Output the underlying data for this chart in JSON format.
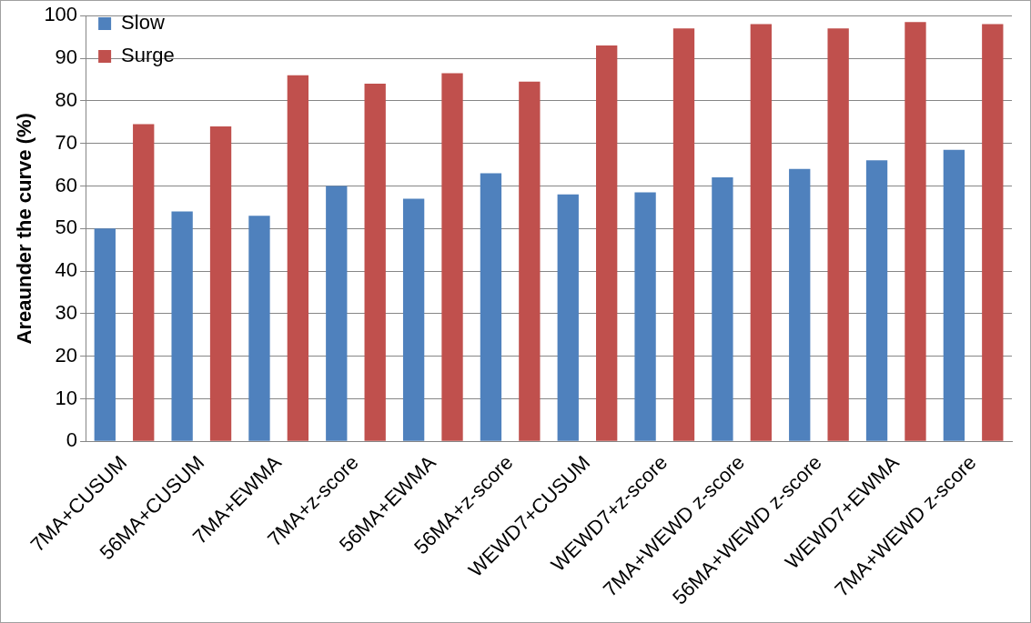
{
  "chart_data": {
    "type": "bar",
    "ylabel": "Areaunder the curve (%)",
    "categories": [
      "7MA+CUSUM",
      "56MA+CUSUM",
      "7MA+EWMA",
      "7MA+z-score",
      "56MA+EWMA",
      "56MA+z-score",
      "WEWD7+CUSUM",
      "WEWD7+z-score",
      "7MA+WEWD z-score",
      "56MA+WEWD z-score",
      "WEWD7+EWMA",
      "7MA+WEWD z-score"
    ],
    "series": [
      {
        "name": "Slow",
        "color": "#4f81bd",
        "values": [
          50,
          54,
          53,
          60,
          57,
          63,
          58,
          58.5,
          62,
          64,
          66,
          68.5
        ]
      },
      {
        "name": "Surge",
        "color": "#c0504d",
        "values": [
          74.5,
          74,
          86,
          84,
          86.5,
          84.5,
          93,
          97,
          98,
          97,
          98.5,
          98
        ]
      }
    ],
    "ylim": [
      0,
      100
    ],
    "yticks": [
      0,
      10,
      20,
      30,
      40,
      50,
      60,
      70,
      80,
      90,
      100
    ],
    "grid": "y",
    "legend": "top left"
  }
}
